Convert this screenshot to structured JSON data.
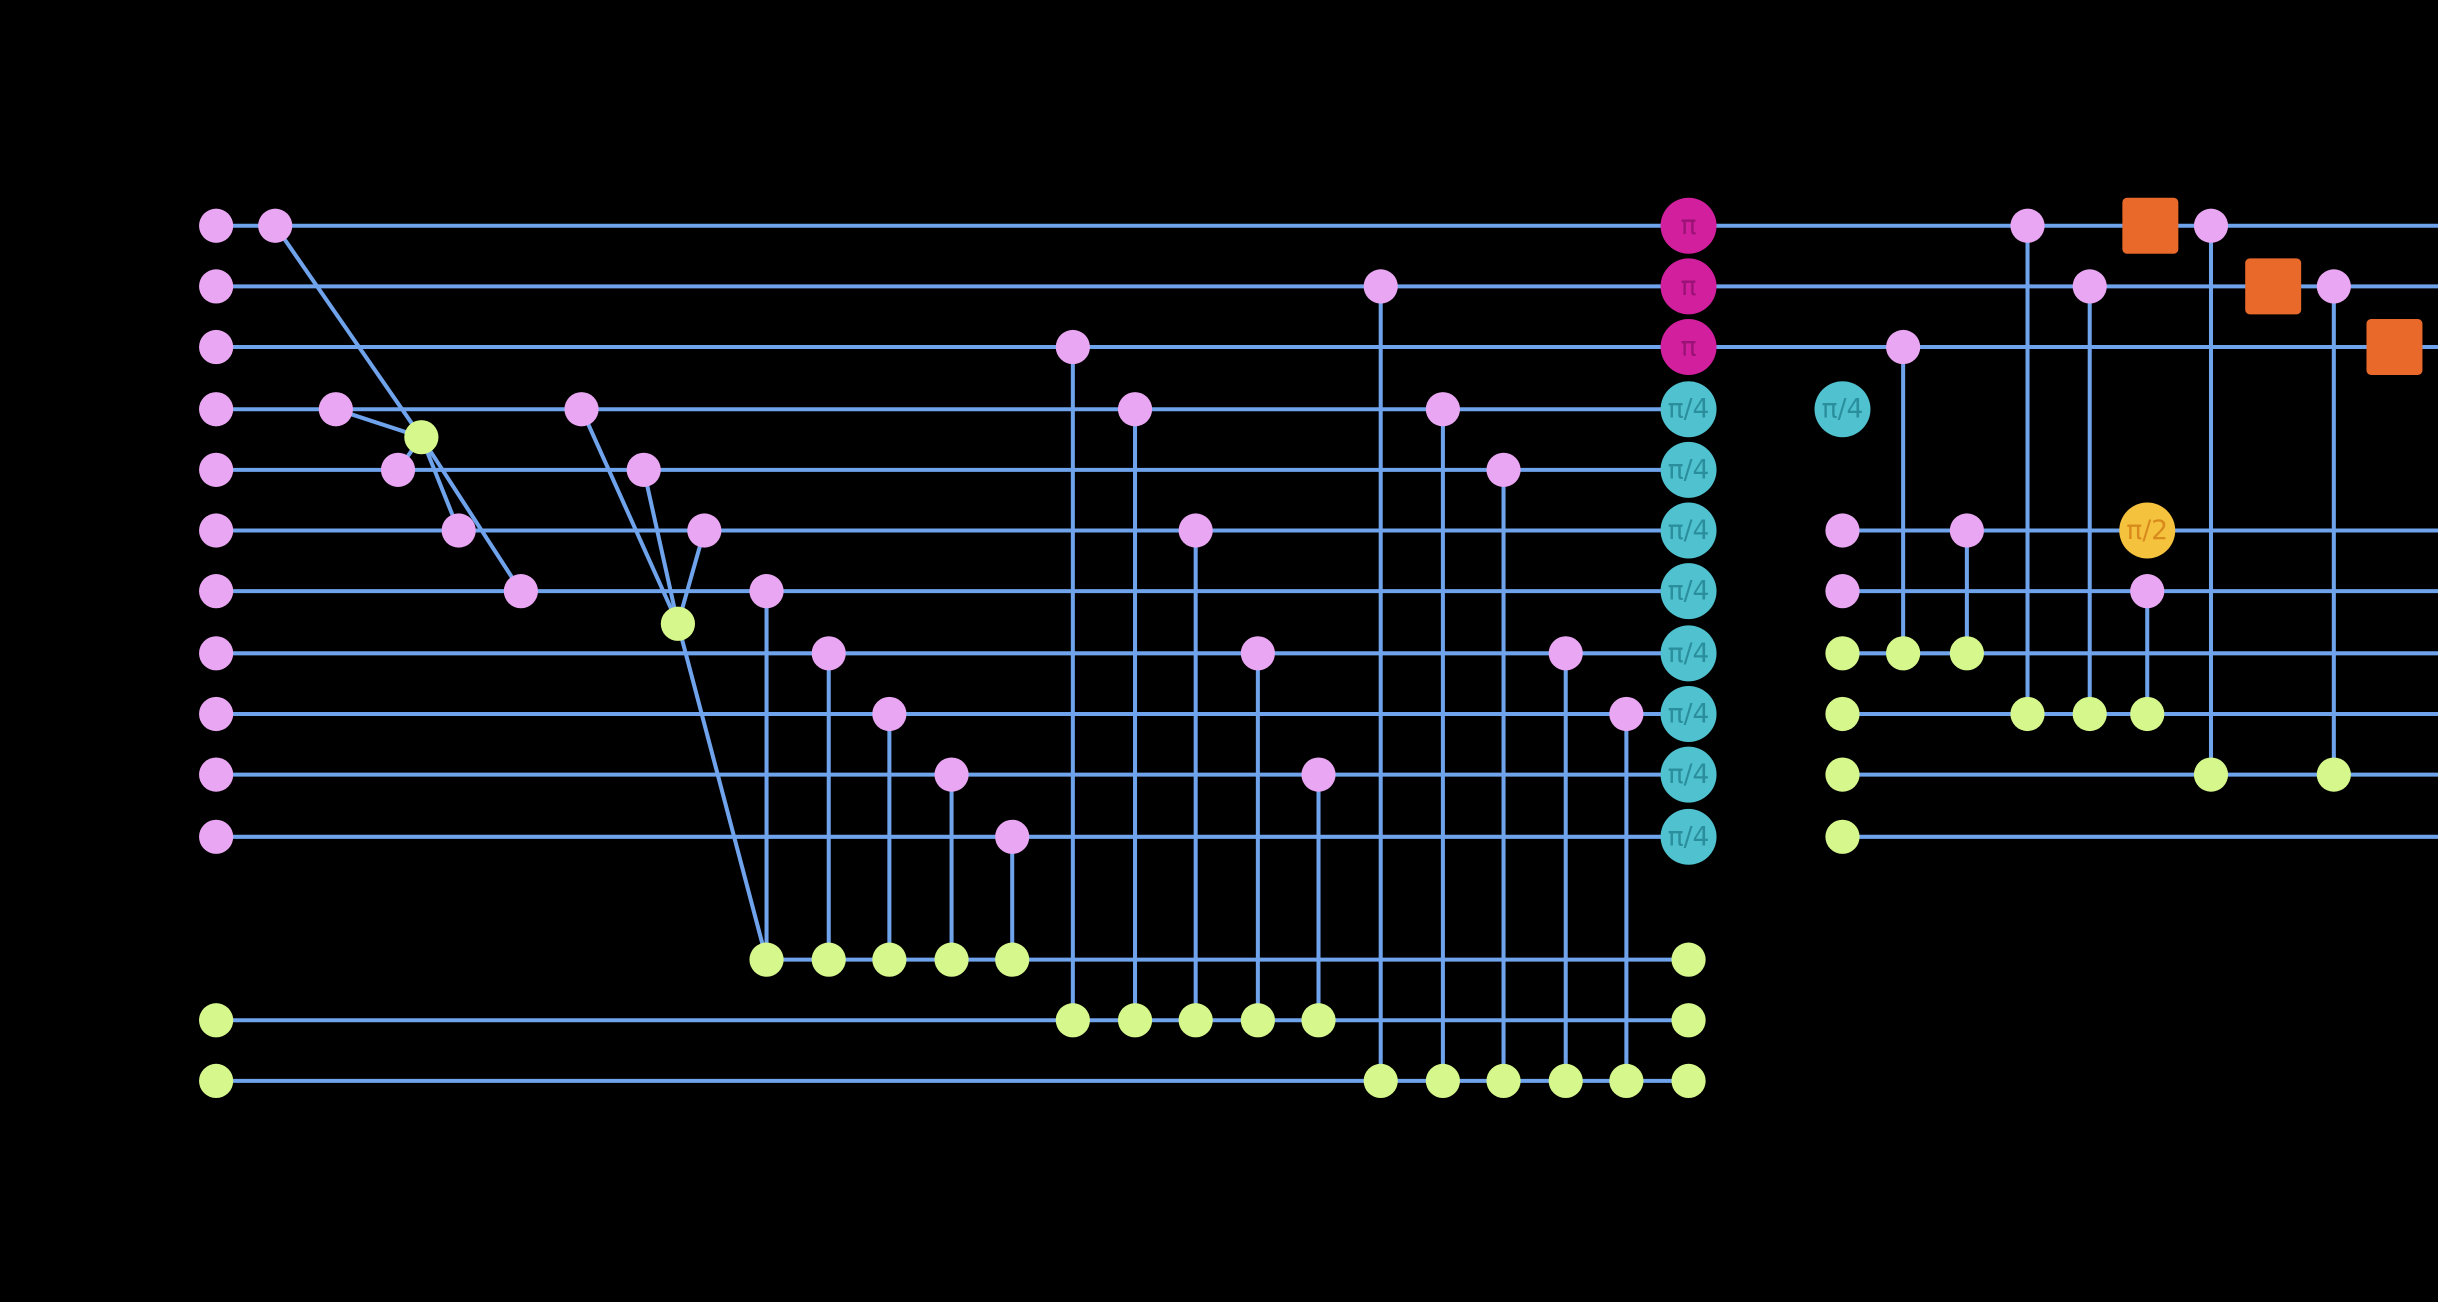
{
  "nodes": [
    {
      "label": "π"
    },
    {
      "label": "π"
    },
    {
      "label": "π"
    },
    {
      "label": "π/4"
    },
    {
      "label": "π/4"
    },
    {
      "label": "π/4"
    },
    {
      "label": "π/4"
    },
    {
      "label": "π/4"
    },
    {
      "label": "π/4"
    },
    {
      "label": "π/4"
    },
    {
      "label": "π/4"
    },
    {
      "label": "π/4"
    },
    {
      "label": "π/2"
    }
  ]
}
